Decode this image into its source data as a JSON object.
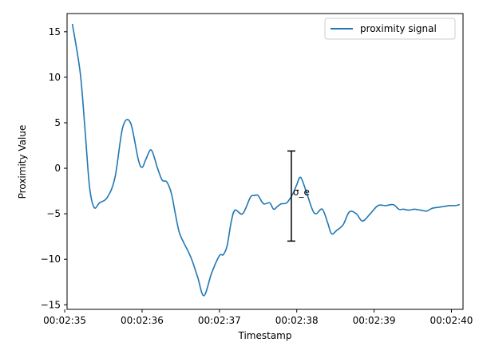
{
  "chart_data": {
    "type": "line",
    "title": "",
    "xlabel": "Timestamp",
    "ylabel": "Proximity Value",
    "xlim": [
      "00:02:35.030",
      "00:02:40.150"
    ],
    "ylim": [
      -15.5,
      17.0
    ],
    "x_ticks": [
      "00:02:35",
      "00:02:36",
      "00:02:37",
      "00:02:38",
      "00:02:39",
      "00:02:40"
    ],
    "y_ticks": [
      15,
      10,
      5,
      0,
      -5,
      -10,
      -15
    ],
    "legend": {
      "position": "top-right"
    },
    "grid": false,
    "series": [
      {
        "name": "proximity signal",
        "color": "#1f77b4",
        "x": [
          "00:02:35.100",
          "00:02:35.200",
          "00:02:35.260",
          "00:02:35.320",
          "00:02:35.380",
          "00:02:35.450",
          "00:02:35.550",
          "00:02:35.650",
          "00:02:35.750",
          "00:02:35.850",
          "00:02:35.950",
          "00:02:36.000",
          "00:02:36.050",
          "00:02:36.120",
          "00:02:36.200",
          "00:02:36.260",
          "00:02:36.320",
          "00:02:36.380",
          "00:02:36.430",
          "00:02:36.480",
          "00:02:36.540",
          "00:02:36.600",
          "00:02:36.650",
          "00:02:36.720",
          "00:02:36.800",
          "00:02:36.900",
          "00:02:37.000",
          "00:02:37.050",
          "00:02:37.100",
          "00:02:37.150",
          "00:02:37.200",
          "00:02:37.300",
          "00:02:37.400",
          "00:02:37.450",
          "00:02:37.500",
          "00:02:37.570",
          "00:02:37.650",
          "00:02:37.700",
          "00:02:37.750",
          "00:02:37.800",
          "00:02:37.870",
          "00:02:37.950",
          "00:02:38.000",
          "00:02:38.050",
          "00:02:38.120",
          "00:02:38.200",
          "00:02:38.250",
          "00:02:38.330",
          "00:02:38.400",
          "00:02:38.450",
          "00:02:38.520",
          "00:02:38.600",
          "00:02:38.680",
          "00:02:38.770",
          "00:02:38.850",
          "00:02:38.950",
          "00:02:39.050",
          "00:02:39.150",
          "00:02:39.250",
          "00:02:39.320",
          "00:02:39.380",
          "00:02:39.450",
          "00:02:39.520",
          "00:02:39.600",
          "00:02:39.680",
          "00:02:39.750",
          "00:02:39.820",
          "00:02:39.900",
          "00:02:39.980",
          "00:02:40.050",
          "00:02:40.100"
        ],
        "y": [
          15.8,
          10.5,
          4.5,
          -2.0,
          -4.3,
          -3.8,
          -3.2,
          -1.0,
          4.5,
          5.0,
          1.0,
          0.1,
          1.0,
          2.0,
          0.0,
          -1.3,
          -1.5,
          -2.8,
          -5.0,
          -7.0,
          -8.2,
          -9.2,
          -10.2,
          -12.0,
          -14.0,
          -11.5,
          -9.6,
          -9.5,
          -8.5,
          -6.0,
          -4.6,
          -5.0,
          -3.2,
          -3.0,
          -3.0,
          -3.9,
          -3.8,
          -4.5,
          -4.2,
          -3.9,
          -3.8,
          -2.8,
          -1.8,
          -1.0,
          -2.5,
          -4.5,
          -5.0,
          -4.5,
          -6.0,
          -7.2,
          -6.8,
          -6.2,
          -4.8,
          -5.0,
          -5.8,
          -5.0,
          -4.1,
          -4.1,
          -4.0,
          -4.5,
          -4.5,
          -4.6,
          -4.5,
          -4.6,
          -4.7,
          -4.4,
          -4.3,
          -4.2,
          -4.1,
          -4.1,
          -4.0
        ]
      }
    ],
    "annotations": [
      {
        "type": "errorbar",
        "x": "00:02:37.930",
        "y_low": -8.0,
        "y_high": 1.9,
        "label": "σ_e"
      }
    ]
  }
}
